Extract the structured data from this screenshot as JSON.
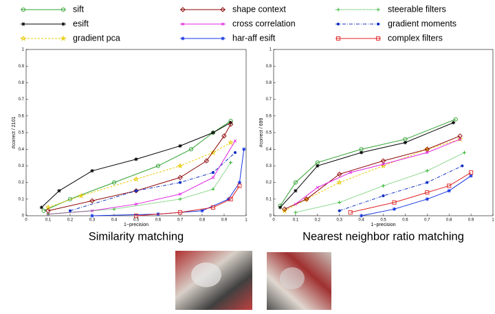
{
  "legend": [
    {
      "name": "sift",
      "color": "#2ca02c",
      "marker": "circle",
      "dash": ""
    },
    {
      "name": "esift",
      "color": "#000000",
      "marker": "asterisk",
      "dash": ""
    },
    {
      "name": "gradient pca",
      "color": "#e8c800",
      "marker": "star",
      "dash": "3,2"
    },
    {
      "name": "shape context",
      "color": "#8b0000",
      "marker": "diamond",
      "dash": ""
    },
    {
      "name": "cross correlation",
      "color": "#e020e0",
      "marker": "x",
      "dash": ""
    },
    {
      "name": "har-aff esift",
      "color": "#1030e0",
      "marker": "asterisk",
      "dash": ""
    },
    {
      "name": "steerable filters",
      "color": "#20b020",
      "marker": "plus",
      "dash": "1,1"
    },
    {
      "name": "gradient moments",
      "color": "#1030c0",
      "marker": "dot",
      "dash": "5,2,1,2"
    },
    {
      "name": "complex filters",
      "color": "#e02020",
      "marker": "square",
      "dash": ""
    }
  ],
  "chart_data": [
    {
      "type": "line",
      "caption": "Similarity matching",
      "xlabel": "1−precision",
      "ylabel": "#correct / 2101",
      "xlim": [
        0,
        1
      ],
      "ylim": [
        0,
        1
      ],
      "xticks": [
        0,
        0.1,
        0.2,
        0.3,
        0.4,
        0.5,
        0.6,
        0.7,
        0.8,
        0.9,
        1
      ],
      "yticks": [
        0,
        0.1,
        0.2,
        0.3,
        0.4,
        0.5,
        0.6,
        0.7,
        0.8,
        0.9,
        1
      ],
      "series": [
        {
          "x": [
            0.08,
            0.2,
            0.4,
            0.6,
            0.75,
            0.85,
            0.93
          ],
          "values": [
            0.03,
            0.1,
            0.2,
            0.3,
            0.4,
            0.5,
            0.57
          ]
        },
        {
          "x": [
            0.07,
            0.15,
            0.3,
            0.5,
            0.7,
            0.85,
            0.93
          ],
          "values": [
            0.05,
            0.15,
            0.27,
            0.34,
            0.42,
            0.5,
            0.56
          ]
        },
        {
          "x": [
            0.1,
            0.25,
            0.5,
            0.7,
            0.85,
            0.93
          ],
          "values": [
            0.05,
            0.12,
            0.22,
            0.3,
            0.38,
            0.44
          ]
        },
        {
          "x": [
            0.1,
            0.3,
            0.5,
            0.7,
            0.82,
            0.9,
            0.93
          ],
          "values": [
            0.03,
            0.09,
            0.15,
            0.23,
            0.33,
            0.48,
            0.55
          ]
        },
        {
          "x": [
            0.1,
            0.3,
            0.5,
            0.7,
            0.85,
            0.95
          ],
          "values": [
            0.01,
            0.03,
            0.07,
            0.13,
            0.23,
            0.45
          ]
        },
        {
          "x": [
            0.3,
            0.6,
            0.8,
            0.92,
            0.97,
            0.99
          ],
          "values": [
            0,
            0.01,
            0.03,
            0.1,
            0.2,
            0.4
          ]
        },
        {
          "x": [
            0.1,
            0.4,
            0.7,
            0.85,
            0.93
          ],
          "values": [
            0.01,
            0.04,
            0.1,
            0.16,
            0.32
          ]
        },
        {
          "x": [
            0.2,
            0.5,
            0.7,
            0.85,
            0.95
          ],
          "values": [
            0.03,
            0.15,
            0.2,
            0.26,
            0.38
          ]
        },
        {
          "x": [
            0.5,
            0.7,
            0.85,
            0.93,
            0.97
          ],
          "values": [
            0,
            0.02,
            0.05,
            0.1,
            0.18
          ]
        }
      ]
    },
    {
      "type": "line",
      "caption": "Nearest neighbor ratio matching",
      "xlabel": "1−precision",
      "ylabel": "#correct / 699",
      "xlim": [
        0,
        1
      ],
      "ylim": [
        0,
        1
      ],
      "xticks": [
        0,
        0.1,
        0.2,
        0.3,
        0.4,
        0.5,
        0.6,
        0.7,
        0.8,
        0.9,
        1
      ],
      "yticks": [
        0,
        0.1,
        0.2,
        0.3,
        0.4,
        0.5,
        0.6,
        0.7,
        0.8,
        0.9,
        1
      ],
      "series": [
        {
          "x": [
            0.03,
            0.1,
            0.2,
            0.4,
            0.6,
            0.83
          ],
          "values": [
            0.06,
            0.2,
            0.32,
            0.4,
            0.46,
            0.58
          ]
        },
        {
          "x": [
            0.03,
            0.1,
            0.2,
            0.4,
            0.6,
            0.82
          ],
          "values": [
            0.05,
            0.15,
            0.3,
            0.38,
            0.44,
            0.56
          ]
        },
        {
          "x": [
            0.05,
            0.15,
            0.3,
            0.5,
            0.7,
            0.85
          ],
          "values": [
            0.03,
            0.1,
            0.2,
            0.3,
            0.4,
            0.46
          ]
        },
        {
          "x": [
            0.05,
            0.15,
            0.3,
            0.5,
            0.7,
            0.85
          ],
          "values": [
            0.04,
            0.1,
            0.25,
            0.33,
            0.4,
            0.48
          ]
        },
        {
          "x": [
            0.1,
            0.2,
            0.35,
            0.5,
            0.7,
            0.85
          ],
          "values": [
            0.07,
            0.17,
            0.26,
            0.31,
            0.38,
            0.46
          ]
        },
        {
          "x": [
            0.4,
            0.55,
            0.7,
            0.8,
            0.9
          ],
          "values": [
            0,
            0.04,
            0.1,
            0.15,
            0.24
          ]
        },
        {
          "x": [
            0.1,
            0.3,
            0.5,
            0.7,
            0.87
          ],
          "values": [
            0.02,
            0.08,
            0.18,
            0.27,
            0.38
          ]
        },
        {
          "x": [
            0.3,
            0.5,
            0.7,
            0.86
          ],
          "values": [
            0.03,
            0.12,
            0.2,
            0.3
          ]
        },
        {
          "x": [
            0.35,
            0.55,
            0.7,
            0.8,
            0.9
          ],
          "values": [
            0.02,
            0.08,
            0.14,
            0.18,
            0.26
          ]
        }
      ]
    }
  ]
}
